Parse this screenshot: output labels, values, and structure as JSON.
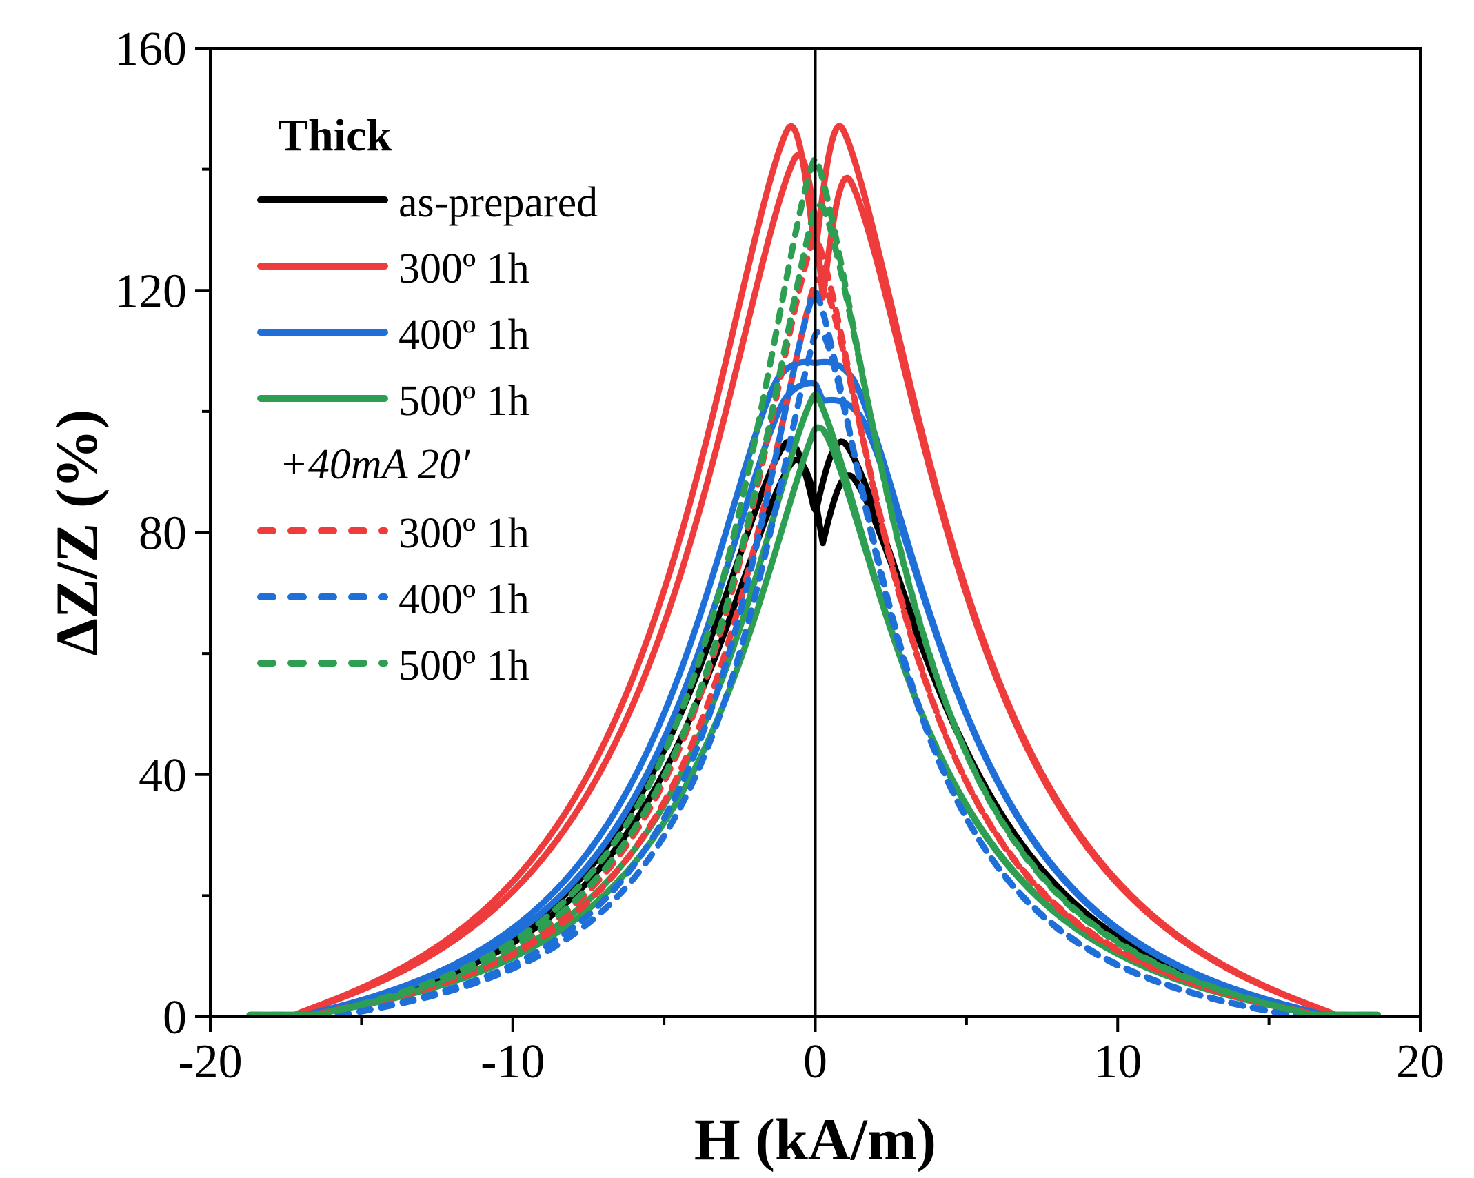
{
  "chart_data": {
    "type": "line",
    "title": "",
    "xlabel": "H (kA/m)",
    "ylabel": "ΔZ/Z (%)",
    "xlim": [
      -20,
      20
    ],
    "ylim": [
      0,
      160
    ],
    "x_ticks": [
      -20,
      -10,
      0,
      10,
      20
    ],
    "x_tick_labels": [
      "-20",
      "-10",
      "0",
      "10",
      "20"
    ],
    "y_ticks": [
      0,
      40,
      80,
      120,
      160
    ],
    "y_tick_labels": [
      "0",
      "40",
      "80",
      "120",
      "160"
    ],
    "legend_position": "top-left",
    "legend_title": "Thick",
    "legend_subtitle": "+40mA 20′",
    "series": [
      {
        "name": "as-prepared",
        "color": "#000000",
        "style": "solid",
        "peak": 100,
        "dip": 83,
        "peak_x": 1.0,
        "wing": 5.2,
        "zero_at": 16.8
      },
      {
        "name": "300º 1h",
        "color": "#ee3b3b",
        "style": "solid",
        "peak": 154,
        "dip": 126,
        "peak_x": 0.9,
        "wing": 5.6,
        "zero_at": 17.2
      },
      {
        "name": "400º 1h",
        "color": "#1f6fd8",
        "style": "solid",
        "peak": 113,
        "dip": 108,
        "peak_x": 1.2,
        "wing": 5.0,
        "zero_at": 16.8
      },
      {
        "name": "500º 1h",
        "color": "#2e9e52",
        "style": "solid",
        "peak": 103,
        "dip": 103,
        "peak_x": 0.0,
        "wing": 4.6,
        "zero_at": 16.6
      },
      {
        "name": "300º 1h",
        "color": "#ee3b3b",
        "style": "dashed",
        "peak": 129,
        "dip": 129,
        "peak_x": 0.0,
        "wing": 4.0,
        "zero_at": 16.6
      },
      {
        "name": "400º 1h",
        "color": "#1f6fd8",
        "style": "dashed",
        "peak": 120,
        "dip": 120,
        "peak_x": 0.0,
        "wing": 3.7,
        "zero_at": 15.6
      },
      {
        "name": "500º 1h",
        "color": "#2e9e52",
        "style": "dashed",
        "peak": 142,
        "dip": 142,
        "peak_x": 0.0,
        "wing": 4.1,
        "zero_at": 16.4
      }
    ]
  }
}
